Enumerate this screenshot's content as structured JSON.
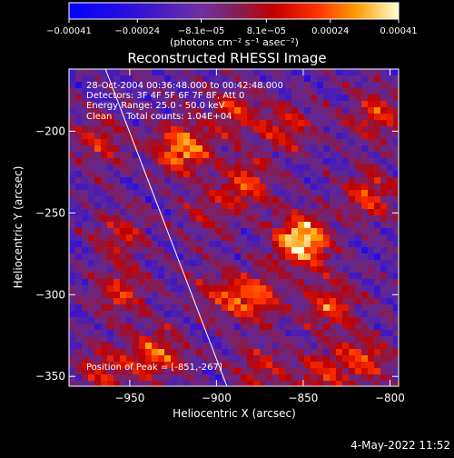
{
  "chart_data": {
    "type": "heatmap",
    "title": "Reconstructed RHESSI Image",
    "xlabel": "Heliocentric X (arcsec)",
    "ylabel": "Heliocentric Y (arcsec)",
    "xlim": [
      -985,
      -795
    ],
    "ylim": [
      -356,
      -162
    ],
    "x_ticks": [
      -950,
      -900,
      -850,
      -800
    ],
    "x_tick_labels": [
      "−950",
      "−900",
      "−850",
      "−800"
    ],
    "y_ticks": [
      -350,
      -300,
      -250,
      -200
    ],
    "y_tick_labels": [
      "−350",
      "−300",
      "−250",
      "−200"
    ],
    "colorbar": {
      "range": [
        -0.00041,
        0.00041
      ],
      "ticks": [
        -0.00041,
        -0.00024,
        -8.1e-05,
        8.1e-05,
        0.00024,
        0.00041
      ],
      "tick_labels": [
        "−0.00041",
        "−0.00024",
        "−8.1e−05",
        "8.1e−05",
        "0.00024",
        "0.00041"
      ],
      "unit": "(photons cm⁻² s⁻¹ asec⁻²)"
    },
    "annotations": [
      "28-Oct-2004 00:36:48.000 to 00:42:48.000",
      "Detectors: 3F 4F 5F 6F 7F 8F, Att 0",
      "Energy Range: 25.0 - 50.0 keV",
      "Clean     Total counts: 1.04E+04"
    ],
    "peak_label": "Position of Peak = [-851,-267]",
    "peak": {
      "x": -851,
      "y": -267
    },
    "limb_line": [
      {
        "x": -964,
        "y": -162
      },
      {
        "x": -894,
        "y": -356
      }
    ],
    "grid": false,
    "sources": [
      {
        "x": -851,
        "y": -267,
        "amp": 1.0
      },
      {
        "x": -920,
        "y": -211,
        "amp": 0.78
      },
      {
        "x": -883,
        "y": -232,
        "amp": 0.55
      },
      {
        "x": -834,
        "y": -306,
        "amp": 0.55
      },
      {
        "x": -878,
        "y": -302,
        "amp": 0.6
      },
      {
        "x": -812,
        "y": -239,
        "amp": 0.55
      },
      {
        "x": -955,
        "y": -265,
        "amp": 0.4
      },
      {
        "x": -935,
        "y": -337,
        "amp": 0.6
      },
      {
        "x": -965,
        "y": -346,
        "amp": 0.45
      },
      {
        "x": -890,
        "y": -189,
        "amp": 0.45
      },
      {
        "x": -808,
        "y": -191,
        "amp": 0.5
      },
      {
        "x": -860,
        "y": -198,
        "amp": 0.45
      },
      {
        "x": -967,
        "y": -205,
        "amp": 0.45
      },
      {
        "x": -955,
        "y": -300,
        "amp": 0.45
      },
      {
        "x": -900,
        "y": -300,
        "amp": 0.35
      },
      {
        "x": -815,
        "y": -340,
        "amp": 0.5
      },
      {
        "x": -840,
        "y": -350,
        "amp": 0.45
      },
      {
        "x": -875,
        "y": -345,
        "amp": 0.4
      },
      {
        "x": -905,
        "y": -250,
        "amp": 0.3
      }
    ]
  },
  "footer": {
    "timestamp": "4-May-2022 11:52"
  },
  "colors": {
    "background": "#000000",
    "text": "#ffffff"
  }
}
